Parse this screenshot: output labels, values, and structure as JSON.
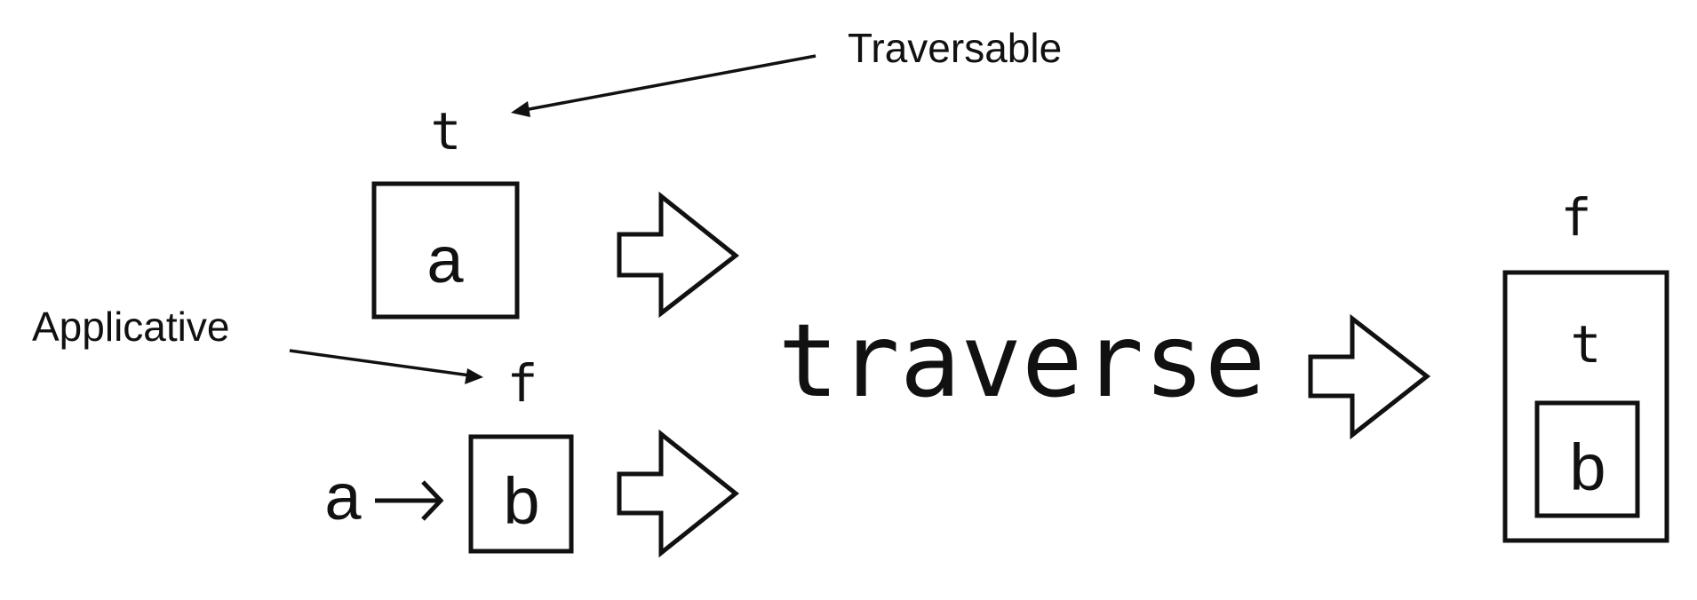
{
  "labels": {
    "traversable_note": "Traversable",
    "applicative_note": "Applicative",
    "operation": "traverse"
  },
  "input_structure": {
    "container_label": "t",
    "content": "a"
  },
  "input_function": {
    "effect_label": "f",
    "argument": "a",
    "arrow": "→",
    "result": "b"
  },
  "output_structure": {
    "outer_label": "f",
    "inner_label": "t",
    "content": "b"
  }
}
